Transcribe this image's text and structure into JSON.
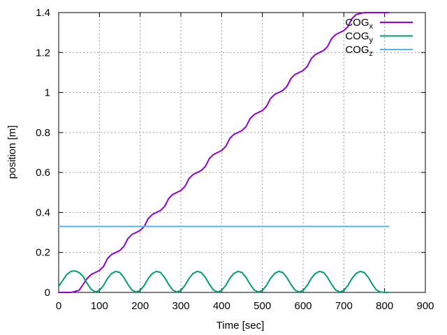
{
  "chart_data": {
    "type": "line",
    "xlabel": "Time [sec]",
    "ylabel": "position [m]",
    "xlim": [
      0,
      900
    ],
    "ylim": [
      0,
      1.4
    ],
    "xticks": [
      0,
      100,
      200,
      300,
      400,
      500,
      600,
      700,
      800,
      900
    ],
    "yticks": [
      0,
      0.2,
      0.4,
      0.6,
      0.8,
      1,
      1.2,
      1.4
    ],
    "xtick_labels": [
      "0",
      "100",
      "200",
      "300",
      "400",
      "500",
      "600",
      "700",
      "800",
      "900"
    ],
    "ytick_labels": [
      "0",
      "0.2",
      "0.4",
      "0.6",
      "0.8",
      "1",
      "1.2",
      "1.4"
    ],
    "grid": true,
    "legend_position": "top-right",
    "series": [
      {
        "name_base": "COG",
        "name_sub": "x",
        "color": "#9400d3",
        "x": [
          0,
          30,
          50,
          60,
          70,
          80,
          90,
          100,
          110,
          120,
          130,
          140,
          150,
          160,
          170,
          180,
          190,
          200,
          210,
          220,
          230,
          240,
          250,
          260,
          270,
          280,
          290,
          300,
          310,
          320,
          330,
          340,
          350,
          360,
          370,
          380,
          390,
          400,
          410,
          420,
          430,
          440,
          450,
          460,
          470,
          480,
          490,
          500,
          510,
          520,
          530,
          540,
          550,
          560,
          570,
          580,
          590,
          600,
          610,
          620,
          630,
          640,
          650,
          660,
          670,
          680,
          690,
          700,
          710,
          720,
          730,
          740,
          750,
          760,
          770,
          780,
          790,
          800,
          810
        ],
        "y": [
          0,
          0,
          0.01,
          0.04,
          0.07,
          0.09,
          0.1,
          0.11,
          0.13,
          0.17,
          0.19,
          0.2,
          0.21,
          0.23,
          0.27,
          0.29,
          0.3,
          0.31,
          0.33,
          0.37,
          0.39,
          0.4,
          0.41,
          0.43,
          0.47,
          0.49,
          0.5,
          0.51,
          0.53,
          0.57,
          0.59,
          0.6,
          0.61,
          0.63,
          0.67,
          0.69,
          0.7,
          0.71,
          0.73,
          0.77,
          0.79,
          0.8,
          0.81,
          0.83,
          0.87,
          0.89,
          0.9,
          0.91,
          0.93,
          0.97,
          0.99,
          1.0,
          1.01,
          1.03,
          1.07,
          1.09,
          1.1,
          1.11,
          1.13,
          1.17,
          1.19,
          1.2,
          1.21,
          1.23,
          1.27,
          1.29,
          1.3,
          1.31,
          1.33,
          1.37,
          1.39,
          1.395,
          1.4,
          1.4,
          1.4,
          1.4,
          1.4,
          1.4,
          1.4
        ]
      },
      {
        "name_base": "COG",
        "name_sub": "y",
        "color": "#009e73",
        "x": [
          0,
          10,
          20,
          30,
          40,
          50,
          60,
          70,
          80,
          90,
          100,
          110,
          120,
          130,
          140,
          150,
          160,
          170,
          180,
          190,
          200,
          210,
          220,
          230,
          240,
          250,
          260,
          270,
          280,
          290,
          300,
          310,
          320,
          330,
          340,
          350,
          360,
          370,
          380,
          390,
          400,
          410,
          420,
          430,
          440,
          450,
          460,
          470,
          480,
          490,
          500,
          510,
          520,
          530,
          540,
          550,
          560,
          570,
          580,
          590,
          600,
          610,
          620,
          630,
          640,
          650,
          660,
          670,
          680,
          690,
          700,
          710,
          720,
          730,
          740,
          750,
          760,
          770,
          780,
          790,
          800,
          810
        ],
        "y": [
          0.03,
          0.06,
          0.09,
          0.105,
          0.108,
          0.1,
          0.08,
          0.045,
          0.015,
          0.002,
          0.01,
          0.035,
          0.07,
          0.095,
          0.105,
          0.1,
          0.075,
          0.04,
          0.012,
          0.002,
          0.01,
          0.035,
          0.07,
          0.095,
          0.105,
          0.1,
          0.075,
          0.04,
          0.012,
          0.002,
          0.01,
          0.035,
          0.07,
          0.095,
          0.105,
          0.1,
          0.075,
          0.04,
          0.012,
          0.002,
          0.01,
          0.035,
          0.07,
          0.095,
          0.105,
          0.1,
          0.075,
          0.04,
          0.012,
          0.002,
          0.01,
          0.035,
          0.07,
          0.095,
          0.105,
          0.1,
          0.075,
          0.04,
          0.012,
          0.002,
          0.01,
          0.035,
          0.07,
          0.095,
          0.105,
          0.1,
          0.075,
          0.04,
          0.012,
          0.002,
          0.01,
          0.035,
          0.07,
          0.095,
          0.105,
          0.1,
          0.075,
          0.04,
          0.012,
          0.002,
          0.0,
          0.0
        ]
      },
      {
        "name_base": "COG",
        "name_sub": "z",
        "color": "#56b4e9",
        "x": [
          0,
          810
        ],
        "y": [
          0.33,
          0.33
        ]
      }
    ]
  }
}
